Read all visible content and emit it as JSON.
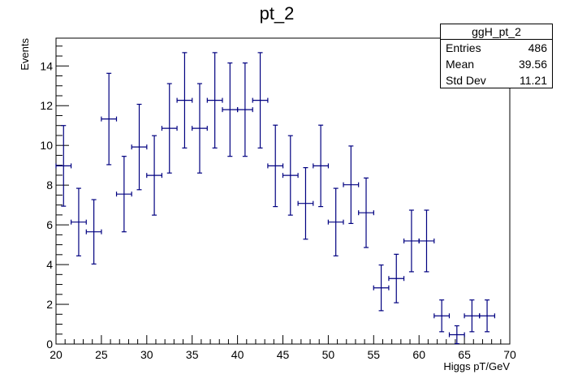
{
  "chart_data": {
    "type": "scatter",
    "title": "pt_2",
    "xlabel": "Higgs pT/GeV",
    "ylabel": "Events",
    "xlim": [
      20,
      70
    ],
    "ylim": [
      0,
      15.4
    ],
    "x_ticks": [
      20,
      25,
      30,
      35,
      40,
      45,
      50,
      55,
      60,
      65,
      70
    ],
    "y_ticks": [
      0,
      2,
      4,
      6,
      8,
      10,
      12,
      14
    ],
    "bin_width": 1.667,
    "series": [
      {
        "x": [
          20.83,
          22.5,
          24.17,
          25.83,
          27.5,
          29.17,
          30.83,
          32.5,
          34.17,
          35.83,
          37.5,
          39.17,
          40.83,
          42.5,
          44.17,
          45.83,
          47.5,
          49.17,
          50.83,
          52.5,
          54.17,
          55.83,
          57.5,
          59.17,
          60.83,
          62.5,
          64.17,
          65.83,
          67.5
        ],
        "y": [
          8.97,
          6.14,
          5.65,
          11.33,
          7.55,
          9.92,
          8.49,
          10.86,
          12.27,
          10.86,
          12.27,
          11.8,
          11.8,
          12.27,
          8.97,
          8.49,
          7.08,
          8.97,
          6.14,
          8.02,
          6.61,
          2.83,
          3.3,
          5.19,
          5.19,
          1.42,
          0.47,
          1.42,
          1.42
        ],
        "yerr": [
          2.03,
          1.7,
          1.62,
          2.3,
          1.9,
          2.15,
          2.0,
          2.25,
          2.4,
          2.25,
          2.4,
          2.35,
          2.35,
          2.4,
          2.05,
          2.0,
          1.8,
          2.05,
          1.7,
          1.95,
          1.75,
          1.15,
          1.22,
          1.55,
          1.55,
          0.8,
          0.45,
          0.8,
          0.8
        ]
      }
    ]
  },
  "stats": {
    "name": "ggH_pt_2",
    "rows": [
      {
        "label": "Entries",
        "value": "486"
      },
      {
        "label": "Mean",
        "value": "39.56"
      },
      {
        "label": "Std Dev",
        "value": "11.21"
      }
    ]
  },
  "colors": {
    "marker": "#000080",
    "axis": "#000000",
    "background": "#ffffff"
  }
}
